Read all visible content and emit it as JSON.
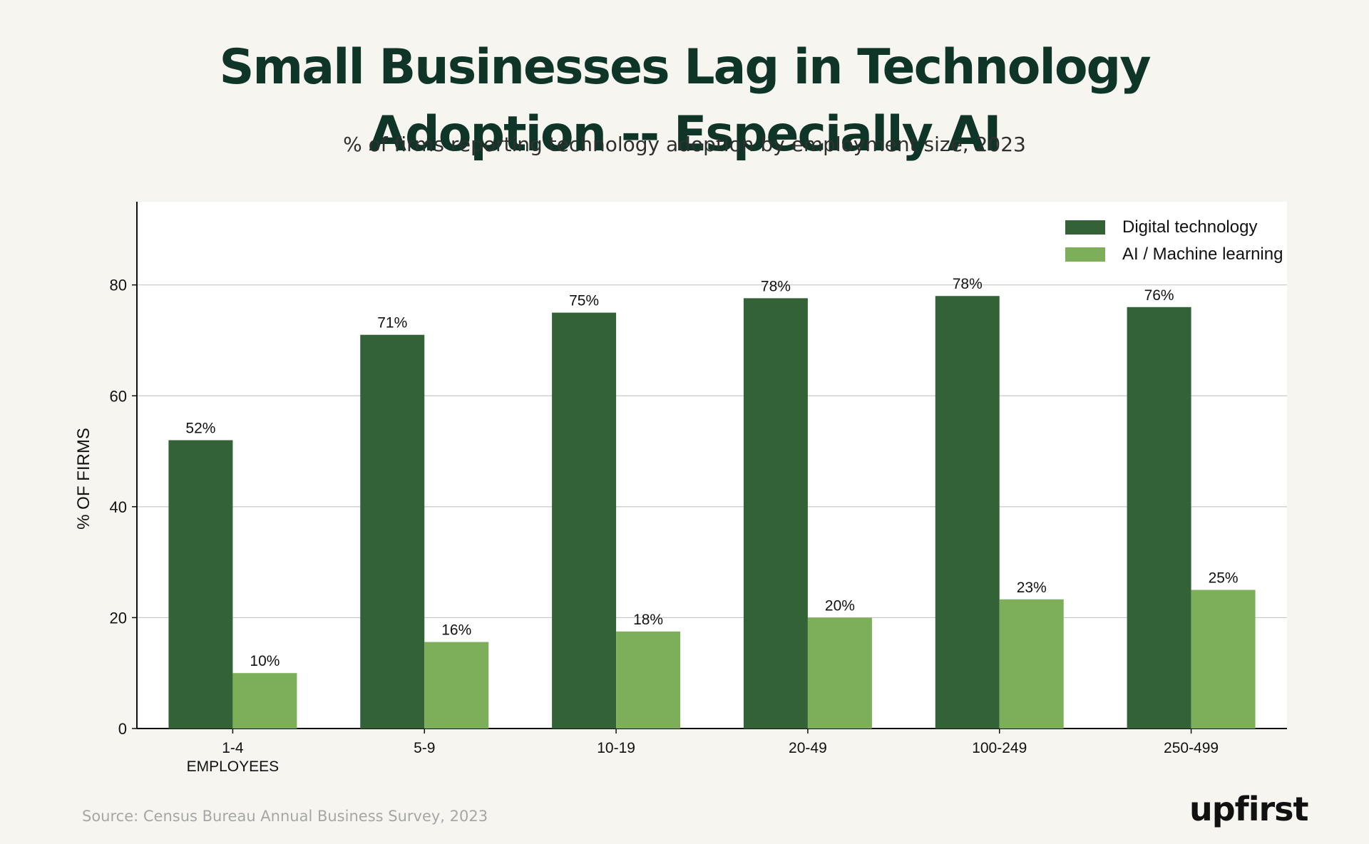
{
  "title_line1": "Small Businesses Lag in Technology",
  "title_line2": "Adoption -- Especially AI",
  "subtitle": "% of firms reporting technology adoption by employment size, 2023",
  "source": "Source: Census Bureau Annual Business Survey, 2023",
  "logo": "upfirst",
  "colors": {
    "background": "#f6f5ef",
    "plot_background": "#ffffff",
    "digital": "#336236",
    "ai": "#7daf5a",
    "title": "#0e3527"
  },
  "chart_data": {
    "type": "bar",
    "title": "Small Businesses Lag in Technology Adoption -- Especially AI",
    "subtitle": "% of firms reporting technology adoption by employment size, 2023",
    "categories": [
      "1-4\nEMPLOYEES",
      "5-9",
      "10-19",
      "20-49",
      "100-249",
      "250-499"
    ],
    "series": [
      {
        "name": "Digital technology",
        "values": [
          52,
          71,
          75,
          77.6,
          78,
          76
        ],
        "labels": [
          "52%",
          "71%",
          "75%",
          "78%",
          "78%",
          "76%"
        ]
      },
      {
        "name": "AI / Machine learning",
        "values": [
          10,
          15.6,
          17.5,
          20,
          23.3,
          25
        ],
        "labels": [
          "10%",
          "16%",
          "18%",
          "20%",
          "23%",
          "25%"
        ]
      }
    ],
    "xlabel": "",
    "ylabel": "% OF FIRMS",
    "ylim": [
      0,
      95
    ],
    "yticks": [
      0,
      20,
      40,
      60,
      80
    ],
    "grid": true,
    "legend_position": "top-right"
  }
}
